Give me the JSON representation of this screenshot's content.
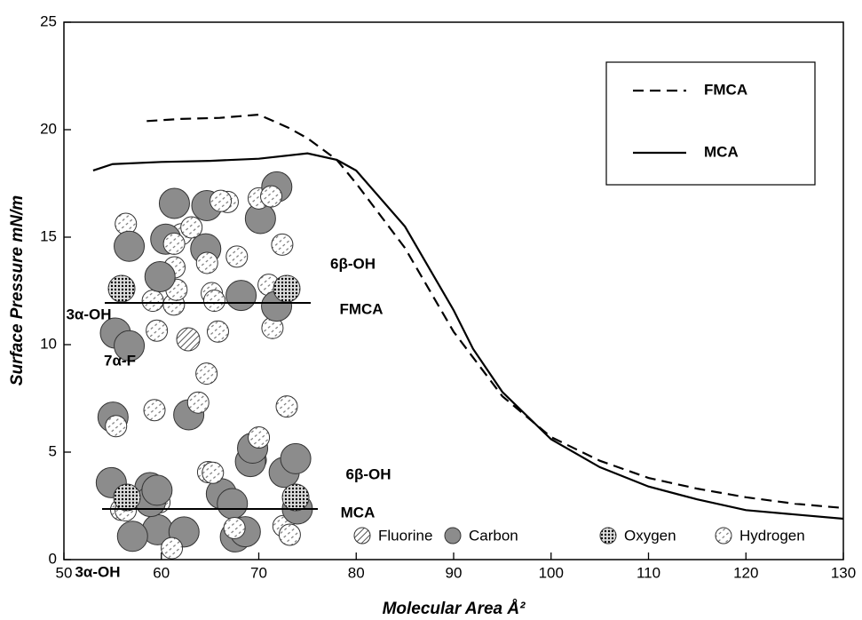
{
  "chart_data": {
    "type": "line",
    "x_label": "Molecular Area Å²",
    "y_label": "Surface Pressure mN/m",
    "xlim": [
      50,
      130
    ],
    "xticks": [
      50,
      60,
      70,
      80,
      90,
      100,
      110,
      120,
      130
    ],
    "ylim": [
      0,
      25
    ],
    "yticks": [
      0,
      5,
      10,
      15,
      20,
      25
    ],
    "grid": false,
    "legend": "upper right",
    "series": [
      {
        "name": "FMCA",
        "color": "#000000",
        "dash": true,
        "x": [
          58.5,
          62,
          66,
          70,
          73,
          75,
          78,
          80,
          85,
          90,
          95,
          100,
          105,
          110,
          115,
          120,
          125,
          130
        ],
        "values": [
          20.4,
          20.5,
          20.55,
          20.7,
          20.1,
          19.6,
          18.6,
          17.5,
          14.5,
          10.6,
          7.6,
          5.7,
          4.6,
          3.8,
          3.3,
          2.9,
          2.6,
          2.4
        ]
      },
      {
        "name": "MCA",
        "color": "#000000",
        "dash": false,
        "x": [
          53,
          55,
          60,
          65,
          70,
          75,
          78,
          80,
          85,
          90,
          92,
          95,
          100,
          105,
          110,
          115,
          120,
          125,
          130
        ],
        "values": [
          18.1,
          18.4,
          18.5,
          18.55,
          18.65,
          18.9,
          18.6,
          18.1,
          15.5,
          11.6,
          9.8,
          7.8,
          5.6,
          4.3,
          3.4,
          2.8,
          2.3,
          2.1,
          1.9
        ]
      }
    ],
    "annotations": [
      "6β-OH",
      "FMCA",
      "3α-OH",
      "7α-F",
      "6β-OH",
      "MCA",
      "3α-OH"
    ],
    "atom_legend": [
      "Fluorine",
      "Carbon",
      "Oxygen",
      "Hydrogen"
    ]
  }
}
